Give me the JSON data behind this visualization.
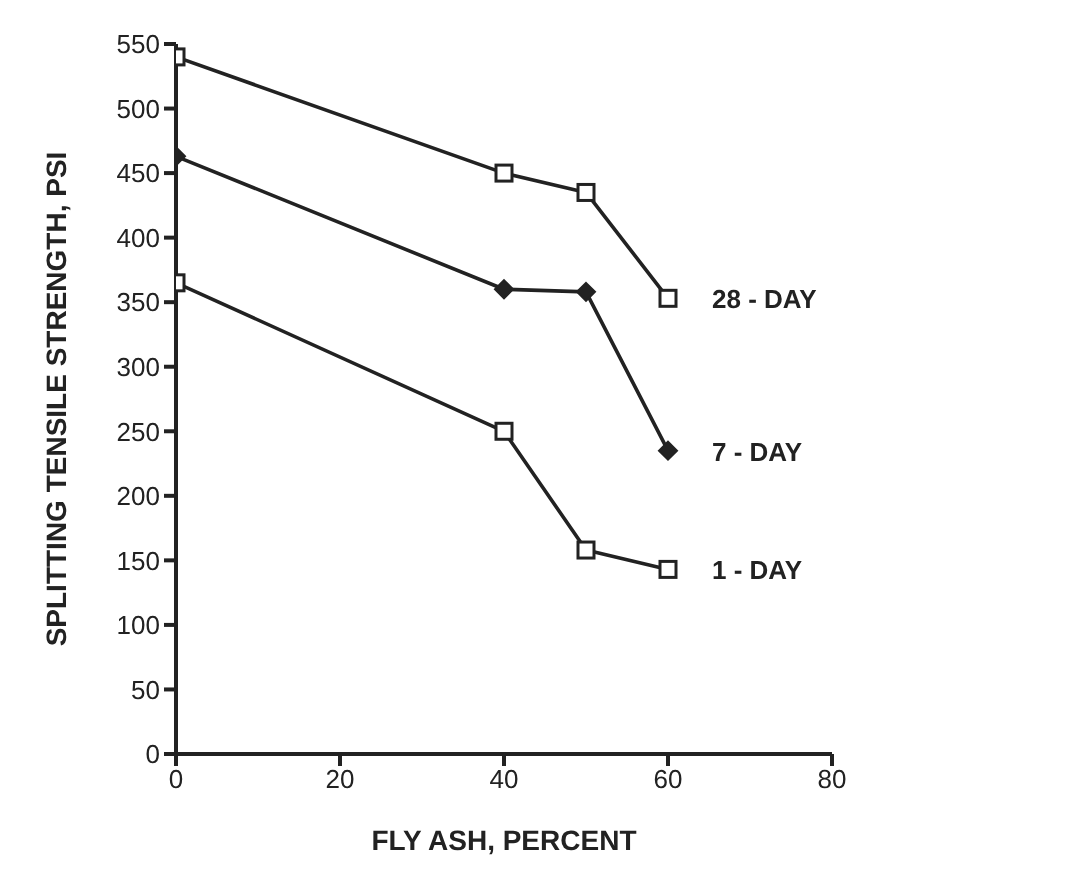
{
  "chart_data": {
    "type": "line",
    "xlabel": "FLY ASH, PERCENT",
    "ylabel": "SPLITTING TENSILE STRENGTH, PSI",
    "x": [
      0,
      40,
      50,
      60
    ],
    "series": [
      {
        "name": "28 - DAY",
        "color": "#222222",
        "marker": "square",
        "values": [
          540,
          450,
          435,
          353
        ]
      },
      {
        "name": "7 - DAY",
        "color": "#222222",
        "marker": "diamond",
        "values": [
          463,
          360,
          358,
          235
        ]
      },
      {
        "name": "1 - DAY",
        "color": "#222222",
        "marker": "square",
        "values": [
          365,
          250,
          158,
          143
        ]
      }
    ],
    "xlim": [
      0,
      80
    ],
    "xticks": [
      0,
      20,
      40,
      60,
      80
    ],
    "ylim": [
      0,
      550
    ],
    "yticks": [
      0,
      50,
      100,
      150,
      200,
      250,
      300,
      350,
      400,
      450,
      500,
      550
    ],
    "grid": false,
    "legend": false,
    "line_style": "solid"
  }
}
